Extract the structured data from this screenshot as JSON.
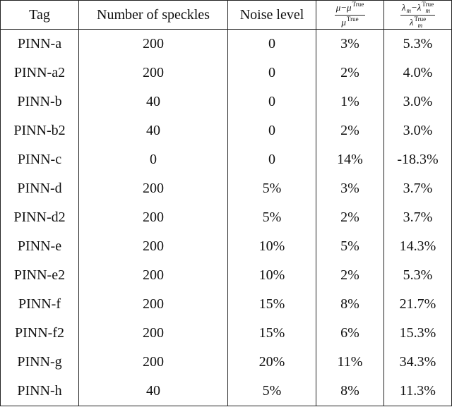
{
  "table": {
    "header": [
      "Tag",
      "Number of speckles",
      "Noise level",
      {
        "numerator": [
          {
            "base": "μ−μ",
            "sup": "True"
          }
        ],
        "denominator": [
          {
            "base": "μ",
            "sup": "True"
          }
        ]
      },
      {
        "numerator": [
          {
            "base": "λ",
            "sub": "m"
          },
          {
            "base": "−λ",
            "sub": "m",
            "sup": "True"
          }
        ],
        "denominator": [
          {
            "base": "λ",
            "sub": "m",
            "sup": "True"
          }
        ]
      }
    ],
    "rows": [
      [
        "PINN-a",
        "200",
        "0",
        "3%",
        "5.3%"
      ],
      [
        "PINN-a2",
        "200",
        "0",
        "2%",
        "4.0%"
      ],
      [
        "PINN-b",
        "40",
        "0",
        "1%",
        "3.0%"
      ],
      [
        "PINN-b2",
        "40",
        "0",
        "2%",
        "3.0%"
      ],
      [
        "PINN-c",
        "0",
        "0",
        "14%",
        "-18.3%"
      ],
      [
        "PINN-d",
        "200",
        "5%",
        "3%",
        "3.7%"
      ],
      [
        "PINN-d2",
        "200",
        "5%",
        "2%",
        "3.7%"
      ],
      [
        "PINN-e",
        "200",
        "10%",
        "5%",
        "14.3%"
      ],
      [
        "PINN-e2",
        "200",
        "10%",
        "2%",
        "5.3%"
      ],
      [
        "PINN-f",
        "200",
        "15%",
        "8%",
        "21.7%"
      ],
      [
        "PINN-f2",
        "200",
        "15%",
        "6%",
        "15.3%"
      ],
      [
        "PINN-g",
        "200",
        "20%",
        "11%",
        "34.3%"
      ],
      [
        "PINN-h",
        "40",
        "5%",
        "8%",
        "11.3%"
      ]
    ]
  }
}
